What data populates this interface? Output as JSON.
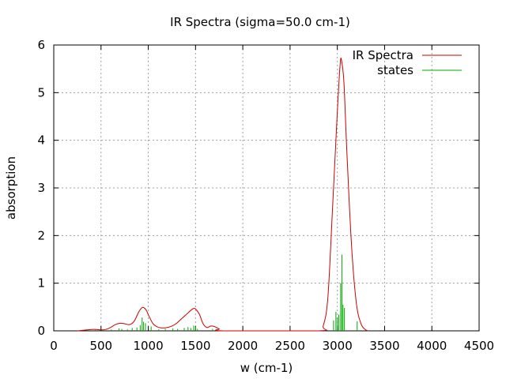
{
  "chart_data": {
    "type": "line",
    "title": "IR Spectra (sigma=50.0 cm-1)",
    "xlabel": "w (cm-1)",
    "ylabel": "absorption",
    "xlim": [
      0,
      4500
    ],
    "ylim": [
      0,
      6
    ],
    "xticks": [
      0,
      500,
      1000,
      1500,
      2000,
      2500,
      3000,
      3500,
      4000,
      4500
    ],
    "yticks": [
      0,
      1,
      2,
      3,
      4,
      5,
      6
    ],
    "grid": true,
    "legend_position": "top-right",
    "series": [
      {
        "name": "IR Spectra",
        "color": "#cc0000",
        "style": "line",
        "points": [
          [
            250,
            0.0
          ],
          [
            300,
            0.01
          ],
          [
            350,
            0.02
          ],
          [
            400,
            0.03
          ],
          [
            450,
            0.03
          ],
          [
            500,
            0.02
          ],
          [
            550,
            0.03
          ],
          [
            600,
            0.07
          ],
          [
            650,
            0.13
          ],
          [
            700,
            0.16
          ],
          [
            750,
            0.15
          ],
          [
            800,
            0.13
          ],
          [
            850,
            0.2
          ],
          [
            900,
            0.4
          ],
          [
            930,
            0.48
          ],
          [
            950,
            0.49
          ],
          [
            980,
            0.43
          ],
          [
            1000,
            0.34
          ],
          [
            1050,
            0.15
          ],
          [
            1100,
            0.08
          ],
          [
            1150,
            0.06
          ],
          [
            1200,
            0.07
          ],
          [
            1250,
            0.1
          ],
          [
            1300,
            0.16
          ],
          [
            1350,
            0.25
          ],
          [
            1400,
            0.34
          ],
          [
            1450,
            0.43
          ],
          [
            1480,
            0.47
          ],
          [
            1500,
            0.46
          ],
          [
            1540,
            0.35
          ],
          [
            1580,
            0.15
          ],
          [
            1620,
            0.07
          ],
          [
            1660,
            0.1
          ],
          [
            1700,
            0.09
          ],
          [
            1750,
            0.04
          ],
          [
            1800,
            0.0
          ],
          [
            2800,
            0.0
          ],
          [
            2850,
            0.1
          ],
          [
            2900,
            0.7
          ],
          [
            2950,
            2.6
          ],
          [
            3000,
            4.6
          ],
          [
            3030,
            5.6
          ],
          [
            3045,
            5.67
          ],
          [
            3070,
            5.2
          ],
          [
            3100,
            3.8
          ],
          [
            3150,
            1.8
          ],
          [
            3200,
            0.6
          ],
          [
            3250,
            0.15
          ],
          [
            3300,
            0.02
          ],
          [
            3330,
            0.0
          ]
        ]
      },
      {
        "name": "states",
        "color": "#00aa00",
        "style": "impulses",
        "points": [
          [
            300,
            0.01
          ],
          [
            440,
            0.02
          ],
          [
            520,
            0.02
          ],
          [
            610,
            0.03
          ],
          [
            690,
            0.05
          ],
          [
            720,
            0.04
          ],
          [
            780,
            0.03
          ],
          [
            830,
            0.06
          ],
          [
            880,
            0.07
          ],
          [
            915,
            0.12
          ],
          [
            935,
            0.28
          ],
          [
            950,
            0.19
          ],
          [
            970,
            0.16
          ],
          [
            1030,
            0.09
          ],
          [
            1110,
            0.03
          ],
          [
            1180,
            0.04
          ],
          [
            1260,
            0.05
          ],
          [
            1310,
            0.04
          ],
          [
            1380,
            0.06
          ],
          [
            1420,
            0.08
          ],
          [
            1450,
            0.06
          ],
          [
            1480,
            0.11
          ],
          [
            1500,
            0.09
          ],
          [
            1520,
            0.04
          ],
          [
            1680,
            0.04
          ],
          [
            1720,
            0.02
          ],
          [
            2960,
            0.22
          ],
          [
            2985,
            0.4
          ],
          [
            3000,
            0.28
          ],
          [
            3015,
            0.34
          ],
          [
            3035,
            1.0
          ],
          [
            3048,
            1.6
          ],
          [
            3060,
            0.55
          ],
          [
            3075,
            0.48
          ],
          [
            3210,
            0.2
          ]
        ]
      }
    ]
  }
}
